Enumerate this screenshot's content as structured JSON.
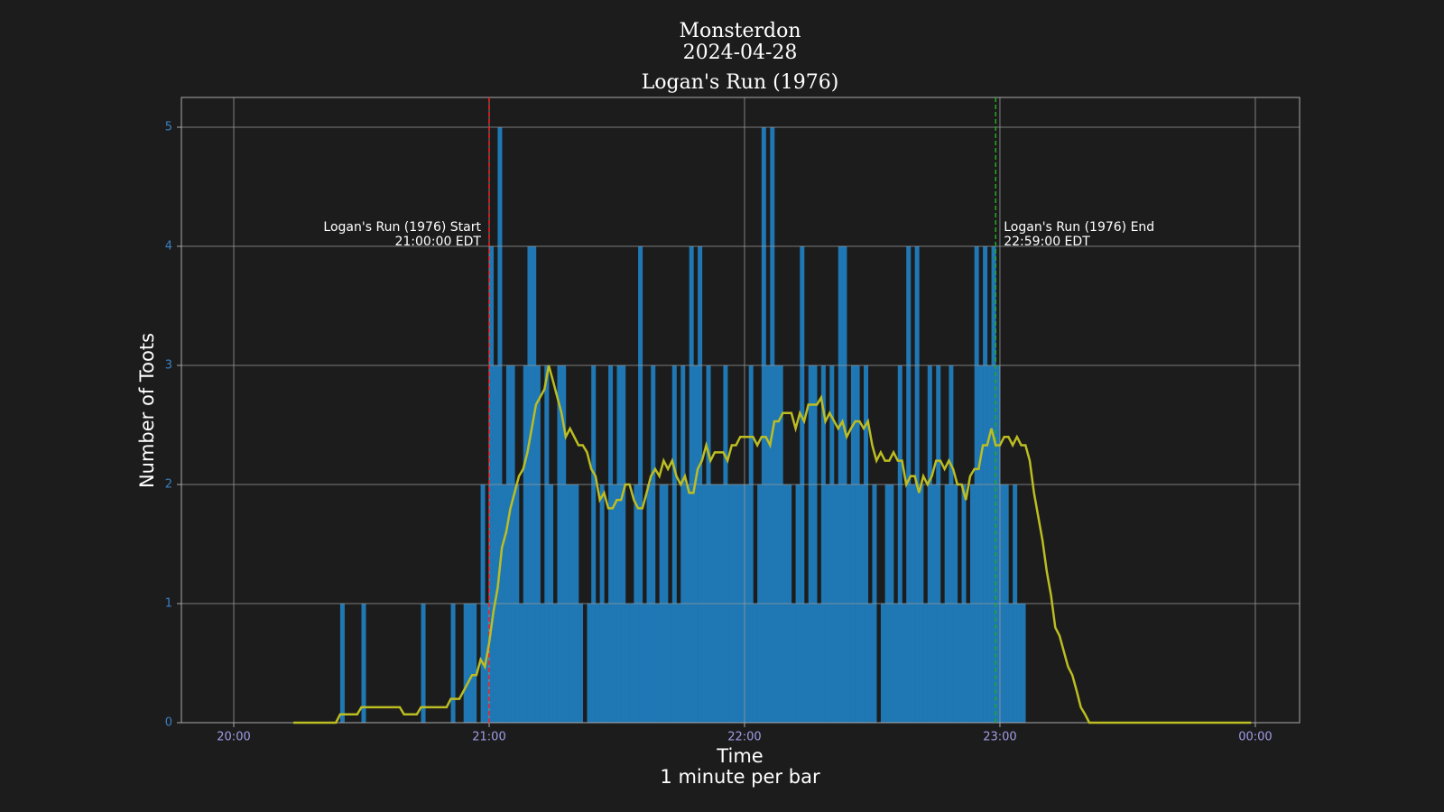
{
  "chart_data": {
    "type": "bar",
    "title_lines": [
      "Monsterdon",
      "2024-04-28",
      "Logan's Run (1976)"
    ],
    "xlabel_lines": [
      "Time",
      "1 minute per bar"
    ],
    "ylabel": "Number of Toots",
    "xlim": [
      -12.3,
      250.4
    ],
    "ylim": [
      0,
      5.25
    ],
    "xticks": [
      {
        "value": 0,
        "label": "20:00"
      },
      {
        "value": 60,
        "label": "21:00"
      },
      {
        "value": 120,
        "label": "22:00"
      },
      {
        "value": 180,
        "label": "23:00"
      },
      {
        "value": 240,
        "label": "00:00"
      }
    ],
    "yticks": [
      0,
      1,
      2,
      3,
      4,
      5
    ],
    "grid": true,
    "series": [
      {
        "type": "bar",
        "color": "#1f77b4",
        "x": [
          25,
          30,
          44,
          51,
          54,
          55,
          56,
          58,
          59,
          60,
          61,
          62,
          63,
          64,
          65,
          66,
          67,
          68,
          69,
          70,
          71,
          72,
          73,
          74,
          75,
          76,
          77,
          78,
          79,
          80,
          81,
          82,
          83,
          84,
          85,
          86,
          87,
          88,
          89,
          90,
          91,
          92,
          93,
          94,
          95,
          96,
          97,
          98,
          99,
          100,
          101,
          102,
          103,
          104,
          105,
          106,
          107,
          108,
          109,
          110,
          111,
          112,
          113,
          114,
          115,
          116,
          117,
          118,
          119,
          120,
          121,
          122,
          123,
          124,
          125,
          126,
          127,
          128,
          129,
          130,
          131,
          132,
          133,
          134,
          135,
          136,
          137,
          138,
          139,
          140,
          141,
          142,
          143,
          144,
          145,
          146,
          147,
          148,
          149,
          150,
          151,
          152,
          153,
          154,
          155,
          156,
          157,
          158,
          159,
          160,
          161,
          162,
          163,
          164,
          165,
          166,
          167,
          168,
          169,
          170,
          171,
          172,
          173,
          174,
          175,
          176,
          177,
          178,
          179,
          180,
          181,
          182,
          183,
          184,
          185
        ],
        "values": [
          1,
          1,
          1,
          1,
          1,
          1,
          1,
          2,
          1,
          4,
          3,
          5,
          2,
          3,
          3,
          2,
          1,
          3,
          4,
          4,
          3,
          1,
          3,
          2,
          1,
          3,
          3,
          2,
          2,
          2,
          1,
          0,
          1,
          3,
          1,
          2,
          1,
          3,
          2,
          3,
          3,
          1,
          1,
          2,
          4,
          1,
          2,
          3,
          1,
          2,
          2,
          1,
          3,
          1,
          3,
          2,
          4,
          3,
          4,
          2,
          3,
          2,
          2,
          2,
          3,
          2,
          2,
          2,
          2,
          2,
          3,
          1,
          2,
          5,
          3,
          5,
          3,
          3,
          2,
          2,
          1,
          2,
          4,
          1,
          3,
          3,
          1,
          3,
          2,
          3,
          2,
          4,
          4,
          2,
          3,
          3,
          2,
          3,
          1,
          2,
          0,
          1,
          2,
          2,
          1,
          3,
          1,
          4,
          2,
          4,
          2,
          1,
          3,
          2,
          3,
          1,
          2,
          3,
          2,
          1,
          2,
          1,
          2,
          4,
          3,
          4,
          3,
          4,
          3,
          2,
          2,
          1,
          2,
          1,
          1
        ]
      },
      {
        "type": "line",
        "color": "#bcbd22",
        "x": [
          14,
          24,
          25,
          29,
          30,
          39,
          40,
          43,
          44,
          50,
          51,
          53,
          56,
          57,
          58,
          59,
          60,
          61,
          62,
          63,
          64,
          65,
          67,
          68,
          69,
          70,
          71,
          73,
          74,
          75,
          77,
          78,
          79,
          81,
          82,
          83,
          84,
          85,
          86,
          87,
          88,
          89,
          90,
          91,
          92,
          93,
          94,
          95,
          96,
          97,
          98,
          99,
          100,
          101,
          102,
          103,
          104,
          105,
          106,
          107,
          108,
          109,
          110,
          111,
          112,
          113,
          115,
          116,
          117,
          118,
          119,
          122,
          123,
          124,
          125,
          126,
          127,
          128,
          129,
          131,
          132,
          133,
          134,
          135,
          137,
          138,
          139,
          140,
          142,
          143,
          144,
          145,
          146,
          147,
          148,
          149,
          150,
          151,
          152,
          153,
          154,
          155,
          156,
          157,
          158,
          159,
          160,
          161,
          162,
          163,
          164,
          165,
          166,
          167,
          168,
          169,
          170,
          171,
          172,
          173,
          174,
          175,
          176,
          177,
          178,
          179,
          180,
          181,
          182,
          183,
          184,
          185,
          186,
          187,
          188,
          189,
          190,
          191,
          192,
          193,
          194,
          195,
          196,
          197,
          198,
          199,
          200,
          201,
          239
        ],
        "values": [
          0,
          0,
          0.07,
          0.07,
          0.13,
          0.13,
          0.07,
          0.07,
          0.13,
          0.13,
          0.2,
          0.2,
          0.4,
          0.4,
          0.53,
          0.47,
          0.67,
          0.93,
          1.13,
          1.47,
          1.6,
          1.8,
          2.07,
          2.13,
          2.27,
          2.47,
          2.67,
          2.8,
          3.0,
          2.87,
          2.6,
          2.4,
          2.47,
          2.33,
          2.33,
          2.27,
          2.13,
          2.07,
          1.87,
          1.93,
          1.8,
          1.8,
          1.87,
          1.87,
          2.0,
          2.0,
          1.87,
          1.8,
          1.8,
          1.93,
          2.07,
          2.13,
          2.07,
          2.2,
          2.13,
          2.2,
          2.07,
          2.0,
          2.07,
          1.93,
          1.93,
          2.13,
          2.2,
          2.33,
          2.2,
          2.27,
          2.27,
          2.2,
          2.33,
          2.33,
          2.4,
          2.4,
          2.33,
          2.4,
          2.4,
          2.33,
          2.53,
          2.53,
          2.6,
          2.6,
          2.47,
          2.6,
          2.53,
          2.67,
          2.67,
          2.73,
          2.53,
          2.6,
          2.47,
          2.53,
          2.4,
          2.47,
          2.53,
          2.53,
          2.47,
          2.53,
          2.33,
          2.2,
          2.27,
          2.2,
          2.2,
          2.27,
          2.2,
          2.2,
          2.0,
          2.07,
          2.07,
          1.93,
          2.07,
          2.0,
          2.07,
          2.2,
          2.2,
          2.13,
          2.2,
          2.13,
          2.0,
          2.0,
          1.87,
          2.07,
          2.13,
          2.13,
          2.33,
          2.33,
          2.47,
          2.33,
          2.33,
          2.4,
          2.4,
          2.33,
          2.4,
          2.33,
          2.33,
          2.2,
          1.93,
          1.73,
          1.53,
          1.27,
          1.07,
          0.8,
          0.73,
          0.6,
          0.47,
          0.4,
          0.27,
          0.13,
          0.07,
          0,
          0
        ]
      }
    ],
    "vlines": [
      {
        "x": 60,
        "color": "#ff2020",
        "side": "left",
        "label_lines": [
          "Logan's Run (1976) Start",
          "21:00:00 EDT"
        ]
      },
      {
        "x": 179,
        "color": "#22aa22",
        "side": "right",
        "label_lines": [
          "Logan's Run (1976) End",
          "22:59:00 EDT"
        ]
      }
    ]
  }
}
